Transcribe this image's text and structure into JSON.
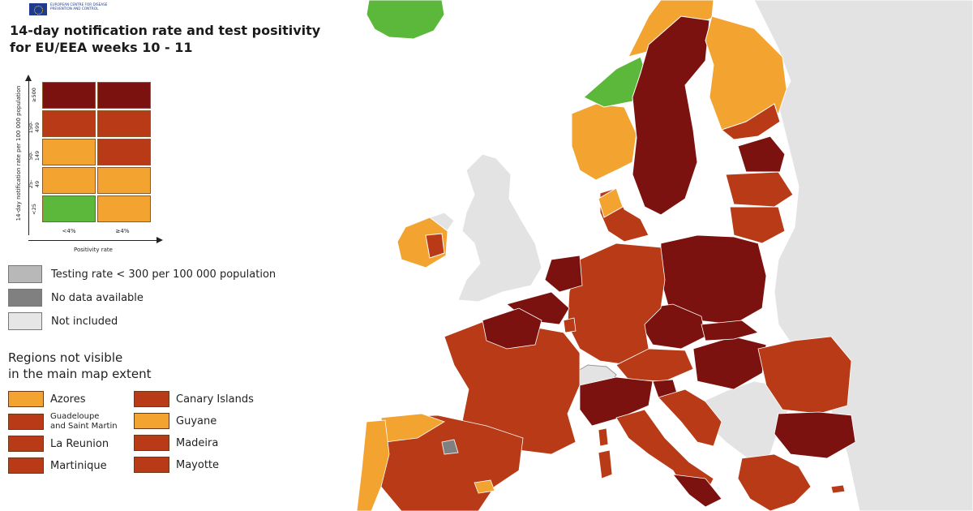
{
  "org_logo_text": "European Centre for Disease Prevention and Control",
  "title_line1": "14-day notification rate and test positivity",
  "title_line2": "for EU/EEA weeks 10 - 11",
  "legend": {
    "y_axis_title": "14-day notification rate per 100 000 population",
    "x_axis_title": "Positivity rate",
    "y_ticks": [
      "≥500",
      "150-499",
      "50-149",
      "25-49",
      "<25"
    ],
    "x_ticks": [
      "<4%",
      "≥4%"
    ],
    "matrix_colors": [
      [
        "#7b1210",
        "#7b1210"
      ],
      [
        "#b83a16",
        "#b83a16"
      ],
      [
        "#f2a330",
        "#b83a16"
      ],
      [
        "#f2a330",
        "#f2a330"
      ],
      [
        "#5cb83a",
        "#f2a330"
      ]
    ]
  },
  "keys": [
    {
      "label": "Testing rate < 300 per 100 000 population",
      "color": "#b8b8b8"
    },
    {
      "label": "No data available",
      "color": "#808080"
    },
    {
      "label": "Not included",
      "color": "#e6e6e6"
    }
  ],
  "regions_title_line1": "Regions not visible",
  "regions_title_line2": "in the main map extent",
  "regions": [
    {
      "label": "Azores",
      "color": "#f2a330"
    },
    {
      "label": "Canary Islands",
      "color": "#b83a16"
    },
    {
      "label_line1": "Guadeloupe",
      "label_line2": "and Saint Martin",
      "color": "#b83a16"
    },
    {
      "label": "Guyane",
      "color": "#f2a330"
    },
    {
      "label": "La Reunion",
      "color": "#b83a16"
    },
    {
      "label": "Madeira",
      "color": "#b83a16"
    },
    {
      "label": "Martinique",
      "color": "#b83a16"
    },
    {
      "label": "Mayotte",
      "color": "#b83a16"
    }
  ],
  "colors": {
    "dark_red": "#7b1210",
    "red": "#b83a16",
    "orange": "#f2a330",
    "green": "#5cb83a",
    "grey": "#b8b8b8",
    "not_included": "#e6e6e6",
    "sea": "#ffffff"
  }
}
